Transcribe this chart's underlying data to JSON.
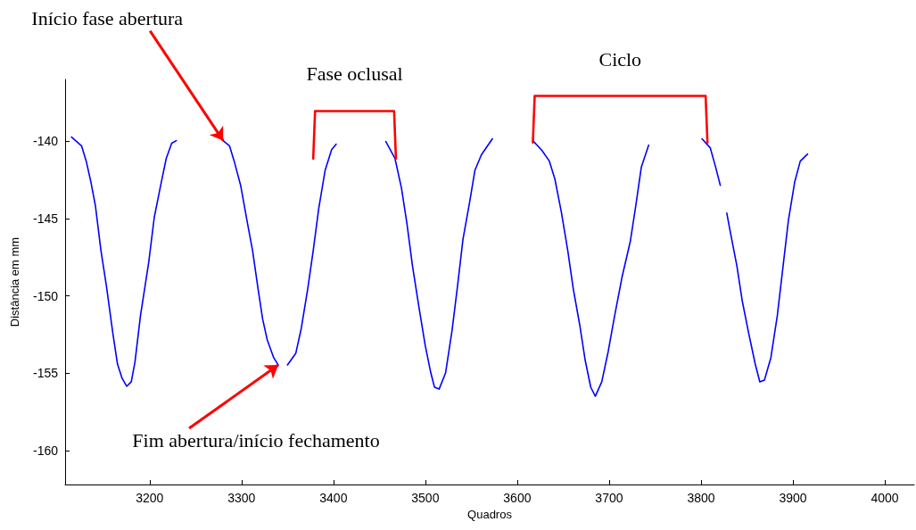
{
  "chart_data": {
    "type": "line",
    "xlabel": "Quadros",
    "ylabel": "Distância em mm",
    "xlim": [
      3108,
      4032
    ],
    "ylim": [
      -162.2,
      -136
    ],
    "xticks": [
      3200,
      3300,
      3400,
      3500,
      3600,
      3700,
      3800,
      3900,
      4000
    ],
    "yticks": [
      -160,
      -155,
      -150,
      -145,
      -140
    ],
    "grid": false,
    "marker": "none",
    "line_style": "solid",
    "series": [
      {
        "color": "#0000ff",
        "x": [
          3115,
          3126,
          3131,
          3136,
          3141,
          3147,
          3153,
          3160,
          3165,
          3170,
          3175,
          3180,
          3184,
          3190,
          3199,
          3205,
          3212,
          3218,
          3224,
          3229,
          3255,
          3280,
          3287,
          3292,
          3299,
          3306,
          3312,
          3318,
          3323,
          3328,
          3335,
          3340,
          3345,
          3350,
          3359,
          3365,
          3372,
          3378,
          3384,
          3391,
          3398,
          3403,
          3430,
          3457,
          3467,
          3474,
          3480,
          3486,
          3493,
          3500,
          3506,
          3510,
          3515,
          3522,
          3529,
          3535,
          3541,
          3548,
          3554,
          3561,
          3573,
          3595,
          3617,
          3627,
          3635,
          3641,
          3648,
          3655,
          3661,
          3668,
          3674,
          3680,
          3685,
          3692,
          3699,
          3706,
          3714,
          3723,
          3729,
          3735,
          3743,
          3770,
          3801,
          3810,
          3816,
          3821,
          3825,
          3828,
          3832,
          3839,
          3845,
          3852,
          3859,
          3864,
          3869,
          3876,
          3883,
          3889,
          3895,
          3902,
          3908,
          3916
        ],
        "values": [
          -139.73,
          -140.31,
          -141.29,
          -142.62,
          -144.18,
          -147.07,
          -149.38,
          -152.44,
          -154.41,
          -155.33,
          -155.85,
          -155.56,
          -154.29,
          -151.29,
          -147.82,
          -144.93,
          -142.85,
          -141.12,
          -140.13,
          -139.96,
          null,
          -139.96,
          -140.31,
          -141.29,
          -142.85,
          -145.16,
          -147.07,
          -149.55,
          -151.52,
          -152.85,
          -154.0,
          -154.47,
          null,
          -154.47,
          -153.72,
          -152.1,
          -149.55,
          -147.07,
          -144.35,
          -141.87,
          -140.54,
          -140.19,
          null,
          -140.02,
          -141.12,
          -143.02,
          -145.33,
          -148.05,
          -150.71,
          -153.25,
          -154.99,
          -155.91,
          -156.03,
          -154.99,
          -152.27,
          -149.38,
          -146.32,
          -144.01,
          -141.87,
          -140.88,
          -139.84,
          null,
          -139.96,
          -140.6,
          -141.29,
          -142.45,
          -144.58,
          -147.07,
          -149.55,
          -151.87,
          -154.18,
          -155.91,
          -156.49,
          -155.56,
          -153.6,
          -151.29,
          -148.8,
          -146.49,
          -144.18,
          -141.69,
          -140.25,
          null,
          -139.84,
          -140.42,
          -141.69,
          -142.85,
          null,
          -144.64,
          -145.91,
          -148.05,
          -150.37,
          -152.45,
          -154.41,
          -155.56,
          -155.45,
          -154.0,
          -151.29,
          -148.23,
          -145.16,
          -142.62,
          -141.29,
          -140.83
        ]
      },
      {
        "color": "#ff0000",
        "x": [
          3378,
          3380,
          3466,
          3468
        ],
        "values": [
          -141.12,
          -138.05,
          -138.05,
          -141.12
        ]
      },
      {
        "color": "#ff0000",
        "x": [
          3617,
          3619,
          3805,
          3807
        ],
        "values": [
          -140.08,
          -137.07,
          -137.07,
          -140.08
        ]
      }
    ],
    "annotations": [
      {
        "text": "Início fase abertura",
        "x": 3280,
        "y": -139.96
      },
      {
        "text": "Fim abertura/início fechamento",
        "x": 3340,
        "y": -154.47
      },
      {
        "text": "Fase oclusal",
        "x": 3423,
        "y": -138.05
      },
      {
        "text": "Ciclo",
        "x": 3712,
        "y": -137.07
      }
    ]
  }
}
